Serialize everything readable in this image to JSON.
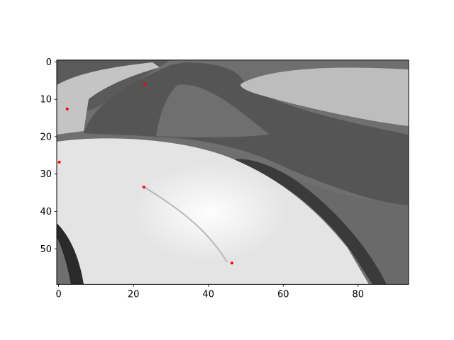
{
  "chart_data": {
    "type": "heatmap",
    "title": "",
    "xlabel": "",
    "ylabel": "",
    "colormap": "gray",
    "image_columns": 94,
    "image_rows": 60,
    "xlim": [
      -0.5,
      93.5
    ],
    "ylim": [
      59.5,
      -0.5
    ],
    "x_ticks": [
      0,
      20,
      40,
      60,
      80
    ],
    "y_ticks": [
      0,
      10,
      20,
      30,
      40,
      50
    ],
    "grid": false,
    "legend": "none",
    "scatter_series": {
      "color": "#ff0000",
      "x": [
        23,
        2.3,
        0.2,
        22.8,
        46.3
      ],
      "y": [
        6,
        12.6,
        26.8,
        33.5,
        53.8
      ]
    }
  }
}
